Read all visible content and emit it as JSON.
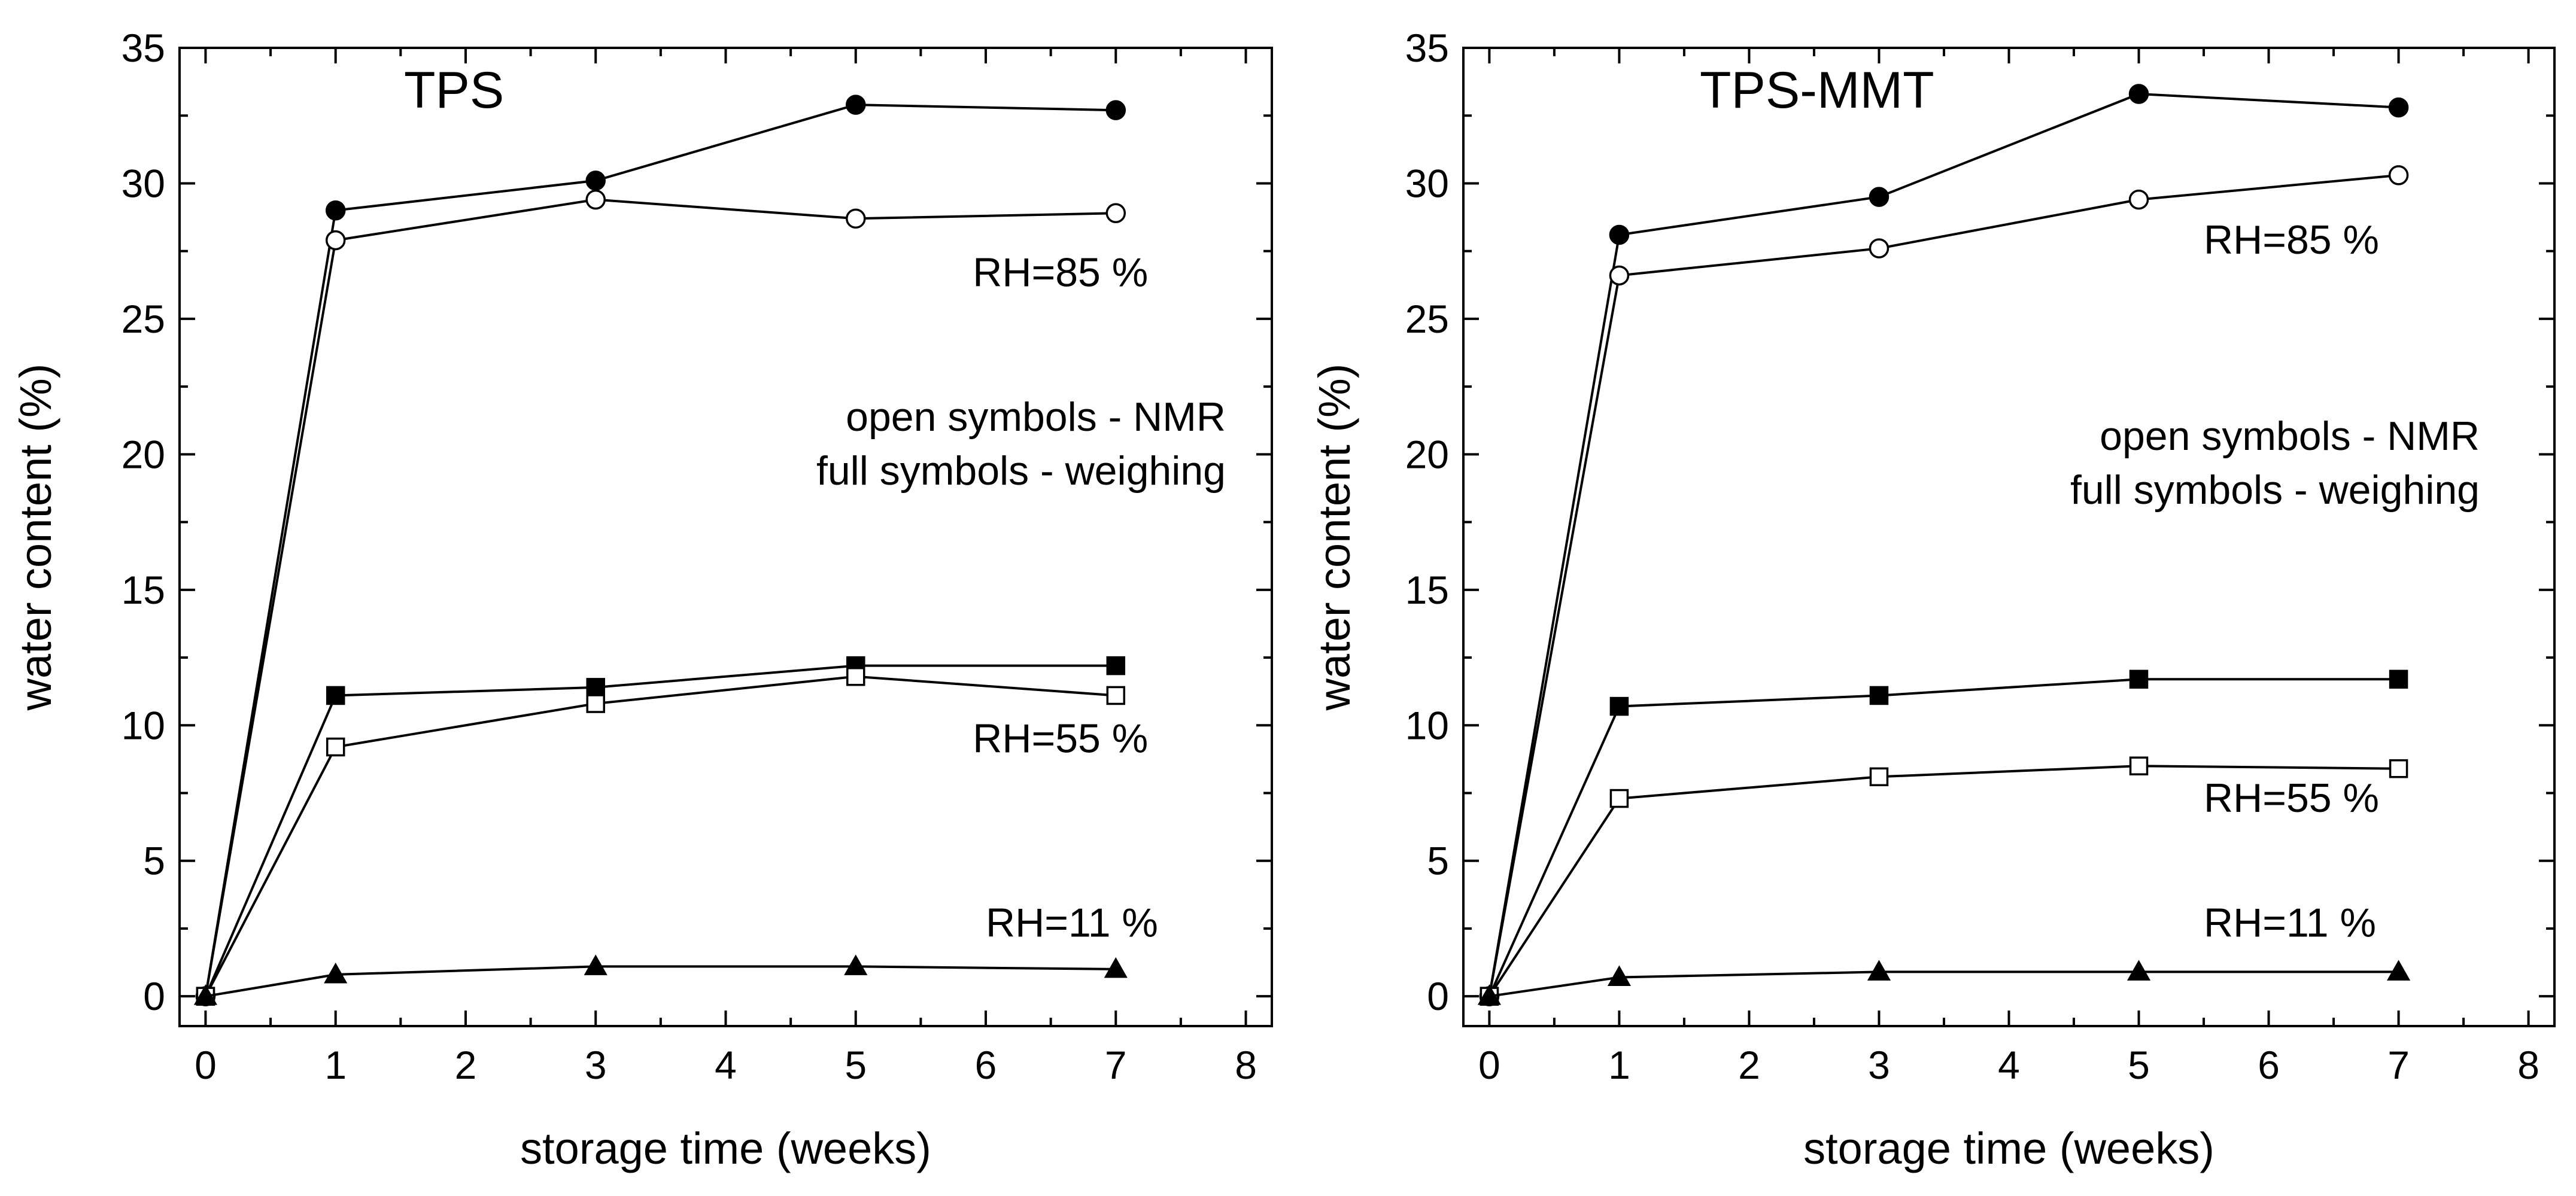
{
  "chart_data": [
    {
      "type": "line",
      "title": "TPS",
      "xlabel": "storage time (weeks)",
      "ylabel": "water content (%)",
      "xlim": [
        -0.2,
        8.2
      ],
      "ylim": [
        -1.1,
        35
      ],
      "xticks": [
        0,
        1,
        2,
        3,
        4,
        5,
        6,
        7,
        8
      ],
      "yticks": [
        0,
        5,
        10,
        15,
        20,
        25,
        30,
        35
      ],
      "note_lines": [
        "open symbols - NMR",
        "full symbols - weighing"
      ],
      "series": [
        {
          "name": "RH=85 % weighing",
          "marker": "circle",
          "filled": true,
          "x": [
            0,
            1,
            3,
            5,
            7
          ],
          "y": [
            0,
            29.0,
            30.1,
            32.9,
            32.7
          ]
        },
        {
          "name": "RH=85 % NMR",
          "marker": "circle",
          "filled": false,
          "x": [
            0,
            1,
            3,
            5,
            7
          ],
          "y": [
            0,
            27.9,
            29.4,
            28.7,
            28.9
          ]
        },
        {
          "name": "RH=55 % weighing",
          "marker": "square",
          "filled": true,
          "x": [
            0,
            1,
            3,
            5,
            7
          ],
          "y": [
            0,
            11.1,
            11.4,
            12.2,
            12.2
          ]
        },
        {
          "name": "RH=55 % NMR",
          "marker": "square",
          "filled": false,
          "x": [
            0,
            1,
            3,
            5,
            7
          ],
          "y": [
            0,
            9.2,
            10.8,
            11.8,
            11.1
          ]
        },
        {
          "name": "RH=11 % weighing",
          "marker": "triangle",
          "filled": true,
          "x": [
            0,
            1,
            3,
            5,
            7
          ],
          "y": [
            0,
            0.8,
            1.1,
            1.1,
            1.0
          ]
        }
      ],
      "annotations": [
        {
          "text": "RH=85 %",
          "x": 5.9,
          "y": 26.2
        },
        {
          "text": "RH=55 %",
          "x": 5.9,
          "y": 9.0
        },
        {
          "text": "RH=11 %",
          "x": 6.0,
          "y": 2.2
        }
      ]
    },
    {
      "type": "line",
      "title": "TPS-MMT",
      "xlabel": "storage time (weeks)",
      "ylabel": "water content (%)",
      "xlim": [
        -0.2,
        8.2
      ],
      "ylim": [
        -1.1,
        35
      ],
      "xticks": [
        0,
        1,
        2,
        3,
        4,
        5,
        6,
        7,
        8
      ],
      "yticks": [
        0,
        5,
        10,
        15,
        20,
        25,
        30,
        35
      ],
      "note_lines": [
        "open symbols - NMR",
        "full symbols - weighing"
      ],
      "series": [
        {
          "name": "RH=85 % weighing",
          "marker": "circle",
          "filled": true,
          "x": [
            0,
            1,
            3,
            5,
            7
          ],
          "y": [
            0,
            28.1,
            29.5,
            33.3,
            32.8
          ]
        },
        {
          "name": "RH=85 % NMR",
          "marker": "circle",
          "filled": false,
          "x": [
            0,
            1,
            3,
            5,
            7
          ],
          "y": [
            0,
            26.6,
            27.6,
            29.4,
            30.3
          ]
        },
        {
          "name": "RH=55 % weighing",
          "marker": "square",
          "filled": true,
          "x": [
            0,
            1,
            3,
            5,
            7
          ],
          "y": [
            0,
            10.7,
            11.1,
            11.7,
            11.7
          ]
        },
        {
          "name": "RH=55 % NMR",
          "marker": "square",
          "filled": false,
          "x": [
            0,
            1,
            3,
            5,
            7
          ],
          "y": [
            0,
            7.3,
            8.1,
            8.5,
            8.4
          ]
        },
        {
          "name": "RH=11 % weighing",
          "marker": "triangle",
          "filled": true,
          "x": [
            0,
            1,
            3,
            5,
            7
          ],
          "y": [
            0,
            0.7,
            0.9,
            0.9,
            0.9
          ]
        }
      ],
      "annotations": [
        {
          "text": "RH=85 %",
          "x": 5.5,
          "y": 27.4
        },
        {
          "text": "RH=55 %",
          "x": 5.5,
          "y": 6.8
        },
        {
          "text": "RH=11 %",
          "x": 5.5,
          "y": 2.2
        }
      ]
    }
  ]
}
